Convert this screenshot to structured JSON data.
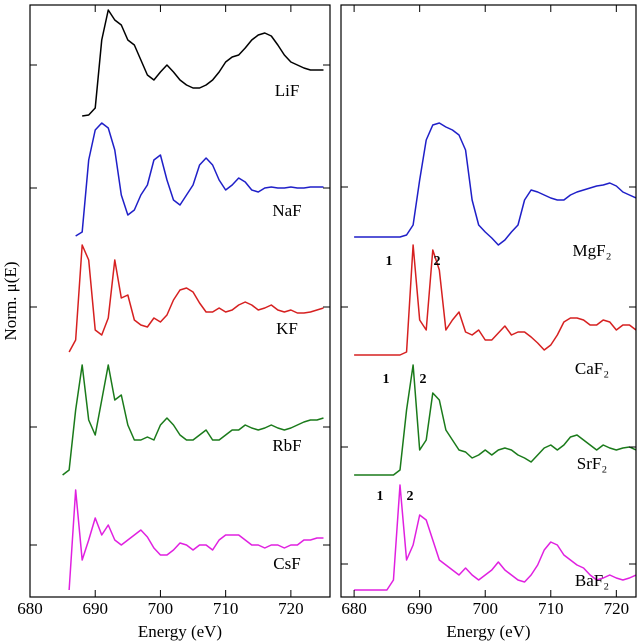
{
  "chart_data": [
    {
      "type": "line",
      "xlabel": "Energy (eV)",
      "ylabel": "Norm. μ(E)",
      "xlim": [
        680,
        726
      ],
      "xticks": [
        680,
        690,
        700,
        710,
        720
      ],
      "ylim": [
        0,
        592
      ],
      "yticks": [
        52,
        170,
        290,
        409,
        532
      ],
      "x": [
        680,
        681,
        682,
        683,
        684,
        685,
        686,
        687,
        688,
        689,
        690,
        691,
        692,
        693,
        694,
        695,
        696,
        697,
        698,
        699,
        700,
        701,
        702,
        703,
        704,
        705,
        706,
        707,
        708,
        709,
        710,
        711,
        712,
        713,
        714,
        715,
        716,
        717,
        718,
        719,
        720,
        721,
        722,
        723,
        724,
        725
      ],
      "series": [
        {
          "name": "LiF",
          "color": "#000000",
          "values": [
            null,
            null,
            null,
            null,
            null,
            null,
            null,
            null,
            481,
            482,
            489,
            557,
            587,
            577,
            572,
            557,
            552,
            537,
            522,
            517,
            525,
            532,
            525,
            517,
            512,
            509,
            509,
            512,
            517,
            525,
            535,
            540,
            542,
            549,
            557,
            562,
            564,
            561,
            552,
            542,
            535,
            532,
            529,
            527,
            527,
            527
          ]
        },
        {
          "name": "NaF",
          "color": "#1f1fc8",
          "values": [
            null,
            null,
            null,
            null,
            null,
            null,
            null,
            361,
            365,
            437,
            467,
            474,
            469,
            447,
            402,
            382,
            387,
            402,
            412,
            437,
            442,
            417,
            397,
            392,
            402,
            412,
            432,
            439,
            432,
            417,
            407,
            412,
            419,
            415,
            407,
            405,
            409,
            410,
            409,
            409,
            410,
            409,
            409,
            410,
            410,
            410
          ]
        },
        {
          "name": "KF",
          "color": "#d62020",
          "values": [
            null,
            null,
            null,
            null,
            null,
            null,
            245,
            257,
            352,
            337,
            267,
            262,
            279,
            337,
            299,
            302,
            277,
            272,
            270,
            279,
            275,
            282,
            297,
            307,
            309,
            305,
            294,
            285,
            285,
            289,
            285,
            287,
            292,
            295,
            292,
            287,
            289,
            292,
            287,
            285,
            287,
            284,
            284,
            285,
            287,
            289
          ]
        },
        {
          "name": "RbF",
          "color": "#1a7a1a",
          "values": [
            null,
            null,
            null,
            null,
            null,
            122,
            127,
            187,
            232,
            177,
            162,
            197,
            232,
            197,
            202,
            172,
            157,
            157,
            160,
            157,
            172,
            179,
            172,
            162,
            157,
            157,
            162,
            167,
            157,
            157,
            162,
            167,
            167,
            172,
            169,
            167,
            169,
            172,
            169,
            167,
            169,
            172,
            175,
            177,
            177,
            179
          ]
        },
        {
          "name": "CsF",
          "color": "#e020e0",
          "values": [
            null,
            null,
            null,
            null,
            null,
            null,
            7,
            107,
            37,
            57,
            79,
            62,
            72,
            57,
            52,
            57,
            62,
            67,
            60,
            49,
            42,
            42,
            47,
            54,
            52,
            47,
            52,
            52,
            47,
            57,
            62,
            62,
            62,
            57,
            52,
            52,
            49,
            52,
            52,
            49,
            52,
            52,
            57,
            57,
            59,
            59
          ]
        }
      ]
    },
    {
      "type": "line",
      "xlabel": "Energy (eV)",
      "xlim": [
        678,
        723
      ],
      "xticks": [
        680,
        690,
        700,
        710,
        720
      ],
      "ylim": [
        0,
        592
      ],
      "yticks": [
        33,
        150,
        290,
        410
      ],
      "x": [
        680,
        681,
        682,
        683,
        684,
        685,
        686,
        687,
        688,
        689,
        690,
        691,
        692,
        693,
        694,
        695,
        696,
        697,
        698,
        699,
        700,
        701,
        702,
        703,
        704,
        705,
        706,
        707,
        708,
        709,
        710,
        711,
        712,
        713,
        714,
        715,
        716,
        717,
        718,
        719,
        720,
        721,
        722,
        723,
        724,
        725
      ],
      "series": [
        {
          "name": "MgF₂",
          "color": "#1f1fc8",
          "values": [
            360,
            360,
            360,
            360,
            360,
            360,
            360,
            360,
            362,
            372,
            417,
            457,
            472,
            474,
            470,
            467,
            462,
            447,
            397,
            372,
            365,
            359,
            352,
            357,
            365,
            372,
            397,
            407,
            405,
            402,
            399,
            397,
            397,
            402,
            405,
            407,
            409,
            411,
            412,
            414,
            411,
            405,
            402,
            399,
            397,
            397
          ]
        },
        {
          "name": "CaF₂",
          "color": "#d62020",
          "peak_labels": [
            "1",
            "2"
          ],
          "values": [
            242,
            242,
            242,
            242,
            242,
            242,
            242,
            242,
            245,
            352,
            277,
            267,
            347,
            327,
            267,
            277,
            285,
            265,
            262,
            267,
            257,
            257,
            264,
            271,
            262,
            265,
            265,
            260,
            254,
            247,
            252,
            262,
            275,
            279,
            279,
            277,
            272,
            272,
            277,
            275,
            267,
            272,
            272,
            267,
            265,
            265
          ]
        },
        {
          "name": "SrF₂",
          "color": "#1a7a1a",
          "peak_labels": [
            "1",
            "2"
          ],
          "values": [
            122,
            122,
            122,
            122,
            122,
            122,
            122,
            127,
            187,
            232,
            147,
            157,
            204,
            197,
            167,
            157,
            147,
            145,
            139,
            142,
            147,
            142,
            147,
            149,
            147,
            142,
            139,
            135,
            142,
            149,
            152,
            147,
            152,
            160,
            162,
            157,
            152,
            147,
            152,
            149,
            147,
            149,
            150,
            147,
            145,
            145
          ]
        },
        {
          "name": "BaF₂",
          "color": "#e020e0",
          "peak_labels": [
            "1",
            "2"
          ],
          "values": [
            7,
            7,
            7,
            7,
            7,
            7,
            17,
            112,
            37,
            52,
            82,
            77,
            57,
            37,
            32,
            27,
            22,
            29,
            22,
            17,
            22,
            27,
            35,
            27,
            22,
            17,
            15,
            22,
            32,
            47,
            55,
            52,
            42,
            37,
            32,
            29,
            22,
            17,
            19,
            22,
            19,
            17,
            19,
            22,
            22,
            22
          ]
        }
      ]
    }
  ]
}
